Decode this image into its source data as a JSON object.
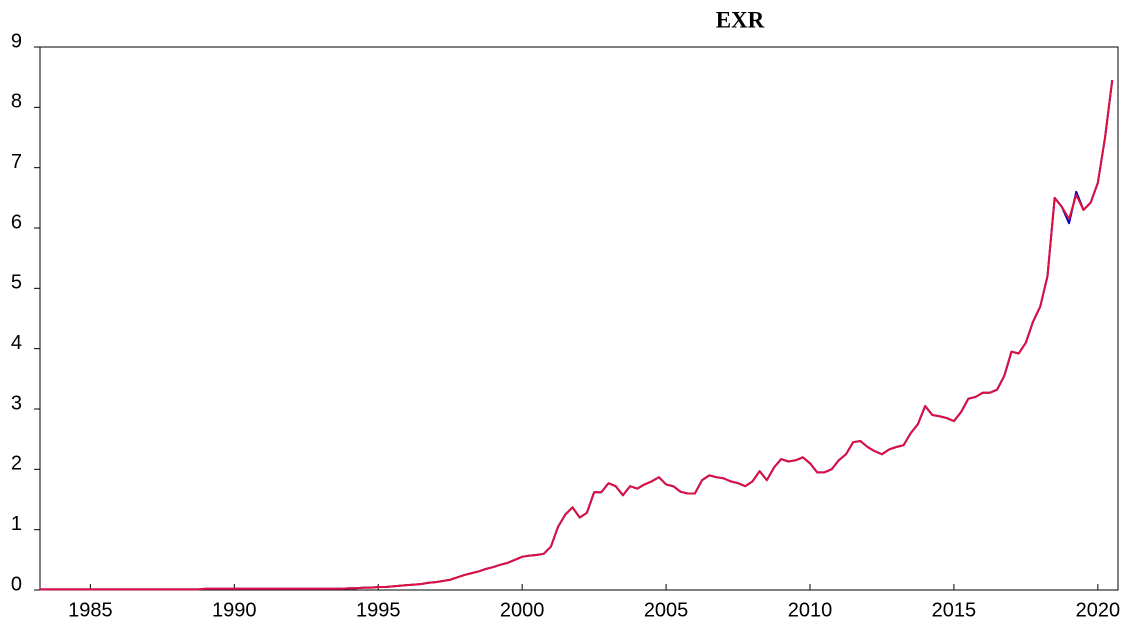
{
  "chart_data": {
    "type": "line",
    "title": "EXR",
    "x": [
      1983.25,
      1983.5,
      1983.75,
      1984,
      1984.25,
      1984.5,
      1984.75,
      1985,
      1985.25,
      1985.5,
      1985.75,
      1986,
      1986.25,
      1986.5,
      1986.75,
      1987,
      1987.25,
      1987.5,
      1987.75,
      1988,
      1988.25,
      1988.5,
      1988.75,
      1989,
      1989.25,
      1989.5,
      1989.75,
      1990,
      1990.25,
      1990.5,
      1990.75,
      1991,
      1991.25,
      1991.5,
      1991.75,
      1992,
      1992.25,
      1992.5,
      1992.75,
      1993,
      1993.25,
      1993.5,
      1993.75,
      1994,
      1994.25,
      1994.5,
      1994.75,
      1995,
      1995.25,
      1995.5,
      1995.75,
      1996,
      1996.25,
      1996.5,
      1996.75,
      1997,
      1997.25,
      1997.5,
      1997.75,
      1998,
      1998.25,
      1998.5,
      1998.75,
      1999,
      1999.25,
      1999.5,
      1999.75,
      2000,
      2000.25,
      2000.5,
      2000.75,
      2001,
      2001.25,
      2001.5,
      2001.75,
      2002,
      2002.25,
      2002.5,
      2002.75,
      2003,
      2003.25,
      2003.5,
      2003.75,
      2004,
      2004.25,
      2004.5,
      2004.75,
      2005,
      2005.25,
      2005.5,
      2005.75,
      2006,
      2006.25,
      2006.5,
      2006.75,
      2007,
      2007.25,
      2007.5,
      2007.75,
      2008,
      2008.25,
      2008.5,
      2008.75,
      2009,
      2009.25,
      2009.5,
      2009.75,
      2010,
      2010.25,
      2010.5,
      2010.75,
      2011,
      2011.25,
      2011.5,
      2011.75,
      2012,
      2012.25,
      2012.5,
      2012.75,
      2013,
      2013.25,
      2013.5,
      2013.75,
      2014,
      2014.25,
      2014.5,
      2014.75,
      2015,
      2015.25,
      2015.5,
      2015.75,
      2016,
      2016.25,
      2016.5,
      2016.75,
      2017,
      2017.25,
      2017.5,
      2017.75,
      2018,
      2018.25,
      2018.5,
      2018.75,
      2019,
      2019.25,
      2019.5,
      2019.75,
      2020,
      2020.25,
      2020.5
    ],
    "series": [
      {
        "color": "#0000cc",
        "values": [
          0.01,
          0.01,
          0.01,
          0.01,
          0.01,
          0.01,
          0.01,
          0.01,
          0.01,
          0.01,
          0.01,
          0.01,
          0.01,
          0.01,
          0.01,
          0.01,
          0.01,
          0.01,
          0.01,
          0.01,
          0.01,
          0.01,
          0.01,
          0.02,
          0.02,
          0.02,
          0.02,
          0.02,
          0.02,
          0.02,
          0.02,
          0.02,
          0.02,
          0.02,
          0.02,
          0.02,
          0.02,
          0.02,
          0.02,
          0.02,
          0.02,
          0.02,
          0.02,
          0.03,
          0.03,
          0.04,
          0.04,
          0.05,
          0.05,
          0.06,
          0.07,
          0.08,
          0.09,
          0.1,
          0.12,
          0.13,
          0.15,
          0.17,
          0.21,
          0.25,
          0.28,
          0.31,
          0.35,
          0.38,
          0.42,
          0.45,
          0.5,
          0.55,
          0.57,
          0.58,
          0.6,
          0.72,
          1.05,
          1.25,
          1.37,
          1.2,
          1.28,
          1.62,
          1.62,
          1.77,
          1.72,
          1.57,
          1.72,
          1.68,
          1.75,
          1.8,
          1.87,
          1.75,
          1.72,
          1.63,
          1.6,
          1.6,
          1.82,
          1.9,
          1.87,
          1.85,
          1.8,
          1.77,
          1.72,
          1.8,
          1.97,
          1.82,
          2.03,
          2.17,
          2.13,
          2.15,
          2.2,
          2.1,
          1.95,
          1.95,
          2.0,
          2.15,
          2.25,
          2.45,
          2.47,
          2.37,
          2.3,
          2.25,
          2.33,
          2.37,
          2.4,
          2.6,
          2.75,
          3.05,
          2.9,
          2.88,
          2.85,
          2.8,
          2.95,
          3.17,
          3.2,
          3.27,
          3.27,
          3.32,
          3.55,
          3.95,
          3.92,
          4.1,
          4.45,
          4.7,
          5.2,
          6.5,
          6.35,
          6.08,
          6.6,
          6.3,
          6.42,
          6.75,
          7.5,
          8.45
        ]
      },
      {
        "color": "#e0103c",
        "values": [
          0.01,
          0.01,
          0.01,
          0.01,
          0.01,
          0.01,
          0.01,
          0.01,
          0.01,
          0.01,
          0.01,
          0.01,
          0.01,
          0.01,
          0.01,
          0.01,
          0.01,
          0.01,
          0.01,
          0.01,
          0.01,
          0.01,
          0.01,
          0.02,
          0.02,
          0.02,
          0.02,
          0.02,
          0.02,
          0.02,
          0.02,
          0.02,
          0.02,
          0.02,
          0.02,
          0.02,
          0.02,
          0.02,
          0.02,
          0.02,
          0.02,
          0.02,
          0.02,
          0.03,
          0.03,
          0.04,
          0.04,
          0.05,
          0.05,
          0.06,
          0.07,
          0.08,
          0.09,
          0.1,
          0.12,
          0.13,
          0.15,
          0.17,
          0.21,
          0.25,
          0.28,
          0.31,
          0.35,
          0.38,
          0.42,
          0.45,
          0.5,
          0.55,
          0.57,
          0.58,
          0.6,
          0.72,
          1.05,
          1.25,
          1.37,
          1.2,
          1.28,
          1.62,
          1.62,
          1.77,
          1.72,
          1.57,
          1.72,
          1.68,
          1.75,
          1.8,
          1.87,
          1.75,
          1.72,
          1.63,
          1.6,
          1.6,
          1.82,
          1.9,
          1.87,
          1.85,
          1.8,
          1.77,
          1.72,
          1.8,
          1.97,
          1.82,
          2.03,
          2.17,
          2.13,
          2.15,
          2.2,
          2.1,
          1.95,
          1.95,
          2.0,
          2.15,
          2.25,
          2.45,
          2.47,
          2.37,
          2.3,
          2.25,
          2.33,
          2.37,
          2.4,
          2.6,
          2.75,
          3.05,
          2.9,
          2.88,
          2.85,
          2.8,
          2.95,
          3.17,
          3.2,
          3.27,
          3.27,
          3.32,
          3.55,
          3.95,
          3.92,
          4.1,
          4.45,
          4.7,
          5.2,
          6.5,
          6.35,
          6.15,
          6.55,
          6.3,
          6.42,
          6.75,
          7.5,
          8.45
        ]
      }
    ],
    "xlim": [
      1983.25,
      2020.7
    ],
    "xticks": [
      1985,
      1990,
      1995,
      2000,
      2005,
      2010,
      2015,
      2020
    ],
    "ylim": [
      0,
      9
    ],
    "yticks": [
      0,
      1,
      2,
      3,
      4,
      5,
      6,
      7,
      8,
      9
    ]
  }
}
